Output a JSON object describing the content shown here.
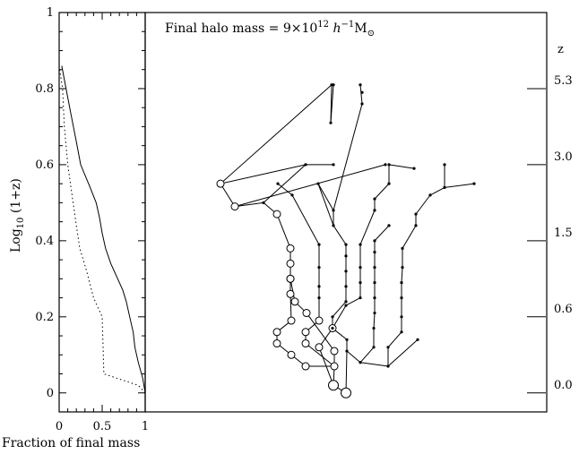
{
  "chart_data": [
    {
      "type": "line",
      "xlabel": "Fraction of final mass",
      "ylabel": "Log",
      "ylabel_sub": "10",
      "ylabel_tail": " (1+z)",
      "xlim": [
        0,
        1
      ],
      "ylim": [
        -0.05,
        1.0
      ],
      "x_ticks": [
        "0",
        "0.5",
        "1"
      ],
      "y_ticks": [
        "0",
        "0.2",
        "0.4",
        "0.6",
        "0.8",
        "1"
      ],
      "series": [
        {
          "style": "solid",
          "points": [
            [
              1.0,
              0.0
            ],
            [
              0.97,
              0.04
            ],
            [
              0.92,
              0.08
            ],
            [
              0.88,
              0.12
            ],
            [
              0.86,
              0.16
            ],
            [
              0.82,
              0.2
            ],
            [
              0.78,
              0.24
            ],
            [
              0.74,
              0.27
            ],
            [
              0.68,
              0.3
            ],
            [
              0.6,
              0.34
            ],
            [
              0.54,
              0.38
            ],
            [
              0.5,
              0.42
            ],
            [
              0.47,
              0.46
            ],
            [
              0.43,
              0.5
            ],
            [
              0.36,
              0.54
            ],
            [
              0.25,
              0.6
            ],
            [
              0.2,
              0.66
            ],
            [
              0.14,
              0.73
            ],
            [
              0.08,
              0.8
            ],
            [
              0.03,
              0.86
            ]
          ]
        },
        {
          "style": "dotted",
          "points": [
            [
              1.0,
              0.0
            ],
            [
              0.92,
              0.02
            ],
            [
              0.52,
              0.05
            ],
            [
              0.5,
              0.2
            ],
            [
              0.4,
              0.25
            ],
            [
              0.32,
              0.32
            ],
            [
              0.24,
              0.38
            ],
            [
              0.2,
              0.44
            ],
            [
              0.15,
              0.52
            ],
            [
              0.1,
              0.6
            ],
            [
              0.06,
              0.7
            ],
            [
              0.04,
              0.8
            ],
            [
              0.0,
              0.86
            ]
          ]
        }
      ]
    },
    {
      "type": "scatter",
      "title_prefix": "Final halo mass  =  9×10",
      "title_exp": "12",
      "title_mid": " h",
      "title_hexp": "−1",
      "title_tail": "M",
      "title_sun": "⊙",
      "right_axis_label": "z",
      "ylim": [
        -0.05,
        1.0
      ],
      "z_ticks": [
        {
          "label": "0.0",
          "logv": 0.0
        },
        {
          "label": "0.6",
          "logv": 0.2
        },
        {
          "label": "1.5",
          "logv": 0.4
        },
        {
          "label": "3.0",
          "logv": 0.6
        },
        {
          "label": "5.3",
          "logv": 0.8
        }
      ],
      "tree_x_range": [
        160,
        610
      ],
      "nodes": {
        "root": [
          386,
          0.0,
          "L"
        ],
        "a0": [
          372,
          0.02,
          "L"
        ],
        "a1": [
          373,
          0.07,
          "M"
        ],
        "a2": [
          373,
          0.11,
          "M"
        ],
        "a3": [
          342,
          0.21,
          "M"
        ],
        "a4": [
          329,
          0.24,
          "M"
        ],
        "a5": [
          324,
          0.3,
          "M"
        ],
        "a6": [
          324,
          0.34,
          "M"
        ],
        "a7": [
          324,
          0.38,
          "M"
        ],
        "a8": [
          309,
          0.47,
          "M"
        ],
        "a9": [
          294,
          0.5,
          "S"
        ],
        "a10": [
          262,
          0.49,
          "M"
        ],
        "a11": [
          246,
          0.55,
          "M"
        ],
        "b0": [
          341,
          0.07,
          "M"
        ],
        "b1": [
          325,
          0.1,
          "M"
        ],
        "b2": [
          309,
          0.13,
          "M"
        ],
        "b3": [
          309,
          0.16,
          "M"
        ],
        "b4": [
          325,
          0.19,
          "M"
        ],
        "b5": [
          324,
          0.26,
          "M"
        ],
        "b6": [
          324,
          0.3,
          "M"
        ],
        "c0": [
          341,
          0.13,
          "M"
        ],
        "c1": [
          341,
          0.16,
          "M"
        ],
        "c2": [
          356,
          0.19,
          "M"
        ],
        "c3": [
          356,
          0.25,
          "S"
        ],
        "c4": [
          356,
          0.28,
          "S"
        ],
        "c5": [
          356,
          0.33,
          "S"
        ],
        "c6": [
          356,
          0.39,
          "S"
        ],
        "c7": [
          326,
          0.52,
          "S"
        ],
        "c8": [
          310,
          0.55,
          "S"
        ],
        "c9": [
          341,
          0.6,
          "S"
        ],
        "c10": [
          372,
          0.6,
          "S"
        ],
        "c11": [
          369,
          0.71,
          "S"
        ],
        "c12": [
          372,
          0.81,
          "S"
        ],
        "d0": [
          356,
          0.12,
          "M"
        ],
        "d1": [
          371,
          0.17,
          "M"
        ],
        "d2": [
          371,
          0.2,
          "S"
        ],
        "d3": [
          386,
          0.24,
          "S"
        ],
        "d4": [
          386,
          0.28,
          "S"
        ],
        "d5": [
          386,
          0.32,
          "S"
        ],
        "d6": [
          386,
          0.36,
          "S"
        ],
        "d7": [
          386,
          0.39,
          "S"
        ],
        "d8": [
          372,
          0.44,
          "S"
        ],
        "d9": [
          372,
          0.48,
          "S"
        ],
        "e0": [
          387,
          0.11,
          "S"
        ],
        "e1": [
          387,
          0.14,
          "S"
        ],
        "e2": [
          371,
          0.17,
          "S"
        ],
        "e3": [
          386,
          0.23,
          "S"
        ],
        "e4": [
          402,
          0.25,
          "S"
        ],
        "e5": [
          402,
          0.29,
          "S"
        ],
        "e6": [
          402,
          0.33,
          "S"
        ],
        "e7": [
          402,
          0.39,
          "S"
        ],
        "e8": [
          418,
          0.48,
          "S"
        ],
        "e9": [
          418,
          0.51,
          "S"
        ],
        "e10": [
          434,
          0.55,
          "S"
        ],
        "e11": [
          434,
          0.6,
          "S"
        ],
        "e12": [
          402,
          0.81,
          "S"
        ],
        "e13": [
          404,
          0.76,
          "S"
        ],
        "f0": [
          402,
          0.08,
          "S"
        ],
        "f1": [
          417,
          0.12,
          "S"
        ],
        "f2": [
          417,
          0.17,
          "S"
        ],
        "f3": [
          418,
          0.21,
          "S"
        ],
        "f4": [
          418,
          0.25,
          "S"
        ],
        "f5": [
          418,
          0.29,
          "S"
        ],
        "f6": [
          418,
          0.33,
          "S"
        ],
        "f7": [
          418,
          0.37,
          "S"
        ],
        "f8": [
          418,
          0.4,
          "S"
        ],
        "f9": [
          434,
          0.44,
          "S"
        ],
        "g0": [
          433,
          0.07,
          "S"
        ],
        "g1": [
          433,
          0.12,
          "S"
        ],
        "g2": [
          448,
          0.16,
          "S"
        ],
        "g3": [
          448,
          0.2,
          "S"
        ],
        "g4": [
          448,
          0.25,
          "S"
        ],
        "g5": [
          448,
          0.29,
          "S"
        ],
        "g6": [
          449,
          0.33,
          "S"
        ],
        "g7": [
          449,
          0.38,
          "S"
        ],
        "g8": [
          464,
          0.44,
          "S"
        ],
        "g9": [
          464,
          0.47,
          "S"
        ],
        "g10": [
          480,
          0.52,
          "S"
        ],
        "g11": [
          496,
          0.54,
          "S"
        ],
        "g12": [
          496,
          0.6,
          "S"
        ],
        "g13": [
          404,
          0.79,
          "S"
        ],
        "h0": [
          466,
          0.14,
          "S"
        ],
        "h1": [
          529,
          0.55,
          "S"
        ],
        "h2": [
          462,
          0.59,
          "S"
        ],
        "h3": [
          355,
          0.55,
          "S"
        ],
        "i0": [
          430,
          0.6,
          "S"
        ],
        "i1": [
          370,
          0.81,
          "S"
        ]
      },
      "edges": [
        [
          "root",
          "a0"
        ],
        [
          "a0",
          "a1"
        ],
        [
          "a1",
          "a2"
        ],
        [
          "a2",
          "a3"
        ],
        [
          "a3",
          "a4"
        ],
        [
          "a4",
          "a5"
        ],
        [
          "a5",
          "a6"
        ],
        [
          "a6",
          "a7"
        ],
        [
          "a7",
          "a8"
        ],
        [
          "a8",
          "a9"
        ],
        [
          "a9",
          "a10"
        ],
        [
          "a10",
          "a11"
        ],
        [
          "a1",
          "b0"
        ],
        [
          "b0",
          "b1"
        ],
        [
          "b1",
          "b2"
        ],
        [
          "b2",
          "b3"
        ],
        [
          "b3",
          "b4"
        ],
        [
          "b4",
          "b5"
        ],
        [
          "b5",
          "b6"
        ],
        [
          "b6",
          "a5"
        ],
        [
          "a1",
          "c0"
        ],
        [
          "c0",
          "c1"
        ],
        [
          "c1",
          "c2"
        ],
        [
          "c2",
          "c3"
        ],
        [
          "c3",
          "c4"
        ],
        [
          "c4",
          "c5"
        ],
        [
          "c5",
          "c6"
        ],
        [
          "c6",
          "c7"
        ],
        [
          "c7",
          "c8"
        ],
        [
          "a0",
          "d0"
        ],
        [
          "d0",
          "d1"
        ],
        [
          "d1",
          "d2"
        ],
        [
          "d2",
          "d3"
        ],
        [
          "d3",
          "d4"
        ],
        [
          "d4",
          "d5"
        ],
        [
          "d5",
          "d6"
        ],
        [
          "d6",
          "d7"
        ],
        [
          "d7",
          "d8"
        ],
        [
          "d8",
          "d9"
        ],
        [
          "root",
          "e0"
        ],
        [
          "e0",
          "e1"
        ],
        [
          "e1",
          "e2"
        ],
        [
          "e2",
          "e3"
        ],
        [
          "e3",
          "e4"
        ],
        [
          "e4",
          "e5"
        ],
        [
          "e5",
          "e6"
        ],
        [
          "e6",
          "e7"
        ],
        [
          "e7",
          "e8"
        ],
        [
          "e8",
          "e9"
        ],
        [
          "e9",
          "e10"
        ],
        [
          "e10",
          "e11"
        ],
        [
          "e0",
          "f0"
        ],
        [
          "f0",
          "f1"
        ],
        [
          "f1",
          "f2"
        ],
        [
          "f2",
          "f3"
        ],
        [
          "f3",
          "f4"
        ],
        [
          "f4",
          "f5"
        ],
        [
          "f5",
          "f6"
        ],
        [
          "f6",
          "f7"
        ],
        [
          "f7",
          "f8"
        ],
        [
          "f8",
          "f9"
        ],
        [
          "f0",
          "g0"
        ],
        [
          "g0",
          "g1"
        ],
        [
          "g1",
          "g2"
        ],
        [
          "g2",
          "g3"
        ],
        [
          "g3",
          "g4"
        ],
        [
          "g4",
          "g5"
        ],
        [
          "g5",
          "g6"
        ],
        [
          "g6",
          "g7"
        ],
        [
          "g7",
          "g8"
        ],
        [
          "g8",
          "g9"
        ],
        [
          "g9",
          "g10"
        ],
        [
          "g10",
          "g11"
        ],
        [
          "g11",
          "g12"
        ],
        [
          "g0",
          "h0"
        ],
        [
          "a11",
          "c9"
        ],
        [
          "c9",
          "c10"
        ],
        [
          "a11",
          "i1"
        ],
        [
          "i1",
          "c11"
        ],
        [
          "c11",
          "c12"
        ],
        [
          "a9",
          "c9"
        ],
        [
          "a10",
          "i0"
        ],
        [
          "d9",
          "e13"
        ],
        [
          "e13",
          "e12"
        ],
        [
          "e11",
          "h2"
        ],
        [
          "g11",
          "h1"
        ],
        [
          "d9",
          "h3"
        ],
        [
          "d8",
          "h3"
        ]
      ]
    }
  ]
}
